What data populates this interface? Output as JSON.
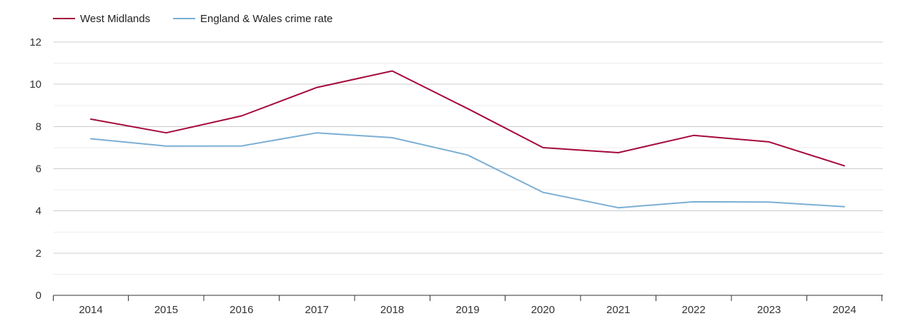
{
  "chart_data": {
    "type": "line",
    "title": "",
    "xlabel": "",
    "ylabel": "",
    "x": [
      "2014",
      "2015",
      "2016",
      "2017",
      "2018",
      "2019",
      "2020",
      "2021",
      "2022",
      "2023",
      "2024"
    ],
    "ylim": [
      0,
      12
    ],
    "yticks": [
      0,
      2,
      4,
      6,
      8,
      10,
      12
    ],
    "grid": true,
    "legend": "top-left",
    "series": [
      {
        "name": "West Midlands",
        "color": "#a50a3a",
        "values": [
          8.35,
          7.7,
          8.5,
          9.85,
          10.63,
          8.85,
          7.0,
          6.76,
          7.58,
          7.27,
          6.14
        ]
      },
      {
        "name": "England & Wales crime rate",
        "color": "#7bafd4",
        "values": [
          7.42,
          7.07,
          7.08,
          7.7,
          7.47,
          6.65,
          4.88,
          4.15,
          4.43,
          4.42,
          4.2
        ]
      }
    ]
  }
}
